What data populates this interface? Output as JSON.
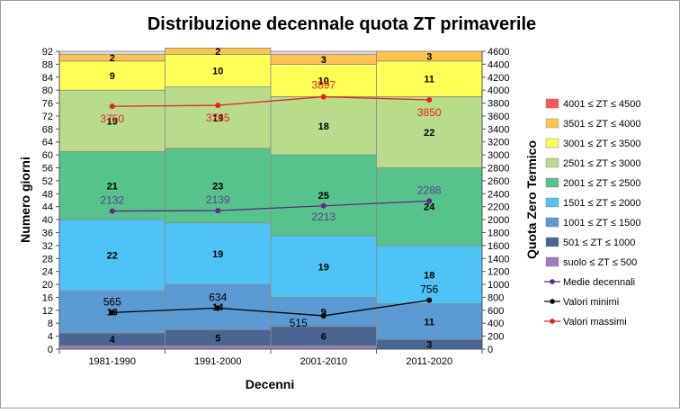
{
  "chart_data": {
    "type": "bar",
    "title": "Distribuzione decennale quota ZT primaverile",
    "xlabel": "Decenni",
    "ylabel": "Numero giorni",
    "y2label": "Quota Zero Termico",
    "ylim": [
      0,
      92
    ],
    "y2lim": [
      0,
      4600
    ],
    "yticks": [
      "0",
      "4",
      "8",
      "12",
      "16",
      "20",
      "24",
      "28",
      "32",
      "36",
      "40",
      "44",
      "48",
      "52",
      "56",
      "60",
      "64",
      "68",
      "72",
      "76",
      "80",
      "84",
      "88",
      "92"
    ],
    "y2ticks": [
      "0",
      "200",
      "400",
      "600",
      "800",
      "1000",
      "1200",
      "1400",
      "1600",
      "1800",
      "2000",
      "2200",
      "2400",
      "2600",
      "2800",
      "3000",
      "3200",
      "3400",
      "3600",
      "3800",
      "4000",
      "4200",
      "4400",
      "4600"
    ],
    "grid": true,
    "legend_position": "right",
    "categories": [
      "1981-1990",
      "1991-2000",
      "2001-2010",
      "2011-2020"
    ],
    "stacked_series": [
      {
        "name": "suolo ≤ ZT ≤ 500",
        "color": "#9E7CC1",
        "values": [
          1,
          1,
          1,
          0
        ],
        "labels": [
          "",
          "",
          "",
          ""
        ]
      },
      {
        "name": "501 ≤ ZT ≤ 1000",
        "color": "#4A6591",
        "values": [
          4,
          5,
          6,
          3
        ],
        "labels": [
          "4",
          "5",
          "6",
          "3"
        ]
      },
      {
        "name": "1001 ≤ ZT ≤ 1500",
        "color": "#5B9BD5",
        "values": [
          13,
          14,
          9,
          11
        ],
        "labels": [
          "13",
          "14",
          "9",
          "11"
        ]
      },
      {
        "name": "1501 ≤ ZT ≤ 2000",
        "color": "#4FC3F7",
        "values": [
          22,
          19,
          19,
          18
        ],
        "labels": [
          "22",
          "19",
          "19",
          "18"
        ]
      },
      {
        "name": "2001 ≤ ZT ≤ 2500",
        "color": "#57C38C",
        "values": [
          21,
          23,
          25,
          24
        ],
        "labels": [
          "21",
          "23",
          "25",
          "24"
        ]
      },
      {
        "name": "2501 ≤ ZT ≤ 3000",
        "color": "#B9DB8C",
        "values": [
          19,
          19,
          18,
          22
        ],
        "labels": [
          "19",
          "19",
          "18",
          "22"
        ]
      },
      {
        "name": "3001 ≤ ZT ≤ 3500",
        "color": "#FFFF55",
        "values": [
          9,
          10,
          10,
          11
        ],
        "labels": [
          "9",
          "10",
          "10",
          "11"
        ]
      },
      {
        "name": "3501 ≤ ZT ≤ 4000",
        "color": "#FFC44D",
        "values": [
          2,
          2,
          3,
          3
        ],
        "labels": [
          "2",
          "2",
          "3",
          "3"
        ]
      },
      {
        "name": "4001 ≤ ZT ≤ 4500",
        "color": "#FF5555",
        "values": [
          0,
          0,
          0,
          0
        ],
        "labels": [
          "",
          "",
          "",
          ""
        ]
      }
    ],
    "line_series": [
      {
        "name": "Medie decennali",
        "color": "#5A2D82",
        "axis": "y2",
        "values": [
          2132,
          2139,
          2213,
          2288
        ],
        "labels": [
          "2132",
          "2139",
          "2213",
          "2288"
        ]
      },
      {
        "name": "Valori minimi",
        "color": "#000000",
        "axis": "y2",
        "values": [
          565,
          634,
          515,
          756
        ],
        "labels": [
          "565",
          "634",
          "515",
          "756"
        ]
      },
      {
        "name": "Valori massimi",
        "color": "#E8231A",
        "axis": "y2",
        "values": [
          3750,
          3765,
          3897,
          3850
        ],
        "labels": [
          "3750",
          "3765",
          "3897",
          "3850"
        ]
      }
    ],
    "legend_order": [
      "4001 ≤ ZT ≤ 4500",
      "3501 ≤ ZT ≤ 4000",
      "3001 ≤ ZT ≤ 3500",
      "2501 ≤ ZT ≤ 3000",
      "2001 ≤ ZT ≤ 2500",
      "1501 ≤ ZT ≤ 2000",
      "1001 ≤ ZT ≤ 1500",
      "501 ≤ ZT ≤ 1000",
      "suolo ≤ ZT ≤ 500",
      "Medie decennali",
      "Valori minimi",
      "Valori massimi"
    ]
  }
}
